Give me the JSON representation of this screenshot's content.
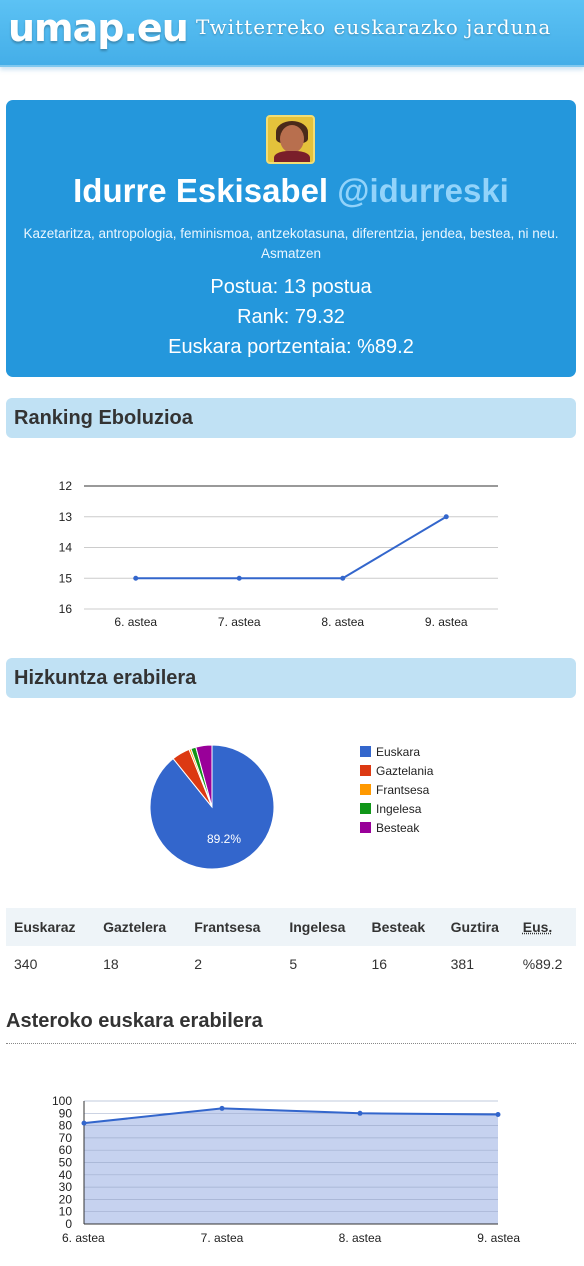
{
  "header": {
    "logo": "umap.eu",
    "tagline": "Twitterreko euskarazko jarduna"
  },
  "profile": {
    "name": "Idurre Eskisabel",
    "handle": "@idurreski",
    "bio": "Kazetaritza, antropologia, feminismoa, antzekotasuna, diferentzia, jendea, bestea, ni neu. Asmatzen",
    "position": "Postua: 13 postua",
    "rank": "Rank: 79.32",
    "percentage": "Euskara portzentaia: %89.2"
  },
  "ranking_section": {
    "title": "Ranking Eboluzioa"
  },
  "language_section": {
    "title": "Hizkuntza erabilera"
  },
  "weekly_section": {
    "title": "Asteroko euskara erabilera"
  },
  "stats_table": {
    "headers": [
      "Euskaraz",
      "Gaztelera",
      "Frantsesa",
      "Ingelesa",
      "Besteak",
      "Guztira",
      "Eus."
    ],
    "values": [
      "340",
      "18",
      "2",
      "5",
      "16",
      "381",
      "%89.2"
    ]
  },
  "chart_data": [
    {
      "type": "line",
      "categories": [
        "6. astea",
        "7. astea",
        "8. astea",
        "9. astea"
      ],
      "values": [
        15,
        15,
        15,
        13
      ],
      "yticks": [
        "12",
        "13",
        "14",
        "15",
        "16"
      ],
      "ylim": [
        16,
        12
      ],
      "y_inverted": true,
      "color": "#3366cc"
    },
    {
      "type": "pie",
      "slices": [
        {
          "label": "Euskara",
          "value": 340,
          "color": "#3366cc"
        },
        {
          "label": "Gaztelania",
          "value": 18,
          "color": "#dc3912"
        },
        {
          "label": "Frantsesa",
          "value": 2,
          "color": "#ff9900"
        },
        {
          "label": "Ingelesa",
          "value": 5,
          "color": "#109618"
        },
        {
          "label": "Besteak",
          "value": 16,
          "color": "#990099"
        }
      ],
      "slice_label": "89.2%",
      "legend": "right"
    },
    {
      "type": "area",
      "categories": [
        "6. astea",
        "7. astea",
        "8. astea",
        "9. astea"
      ],
      "values": [
        82,
        94,
        90,
        89
      ],
      "yticks": [
        "0",
        "10",
        "20",
        "30",
        "40",
        "50",
        "60",
        "70",
        "80",
        "90",
        "100"
      ],
      "ylim": [
        0,
        100
      ],
      "color": "#3366cc"
    }
  ]
}
